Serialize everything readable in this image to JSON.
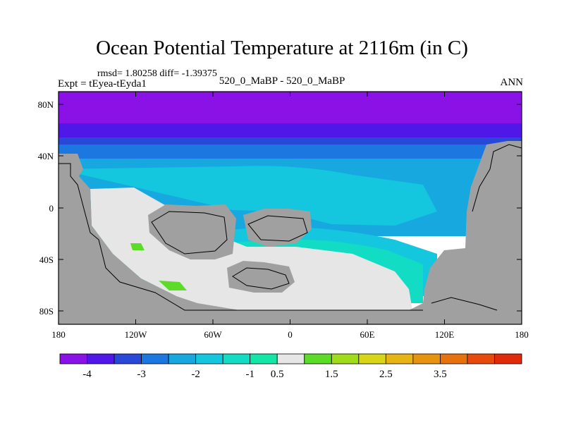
{
  "figure": {
    "title": "Ocean Potential Temperature at 2116m (in C)",
    "stats": "rmsd= 1.80258 diff= -1.39375",
    "experiment": "Expt = tEyea-tEyda1",
    "case": "520_0_MaBP - 520_0_MaBP",
    "season": "ANN"
  },
  "axes": {
    "lat_ticks": [
      "80N",
      "40N",
      "0",
      "40S",
      "80S"
    ],
    "lon_ticks": [
      "180",
      "120W",
      "60W",
      "0",
      "60E",
      "120E",
      "180"
    ]
  },
  "colorbar": {
    "colors": [
      "#8a12e6",
      "#5018e8",
      "#2848d8",
      "#1c78e0",
      "#18a8e0",
      "#14c6de",
      "#12dcc4",
      "#14e6a8",
      "#e6e6e6",
      "#5cdc28",
      "#a0dc1c",
      "#d8d418",
      "#e6b414",
      "#e69410",
      "#e6720e",
      "#e64a0c",
      "#e02a0a"
    ],
    "labels": [
      "-4",
      "-3",
      "-2",
      "-1",
      "0.5",
      "1.5",
      "2.5",
      "3.5"
    ]
  },
  "colors": {
    "land": "#a0a0a0",
    "frame": "#000000"
  }
}
